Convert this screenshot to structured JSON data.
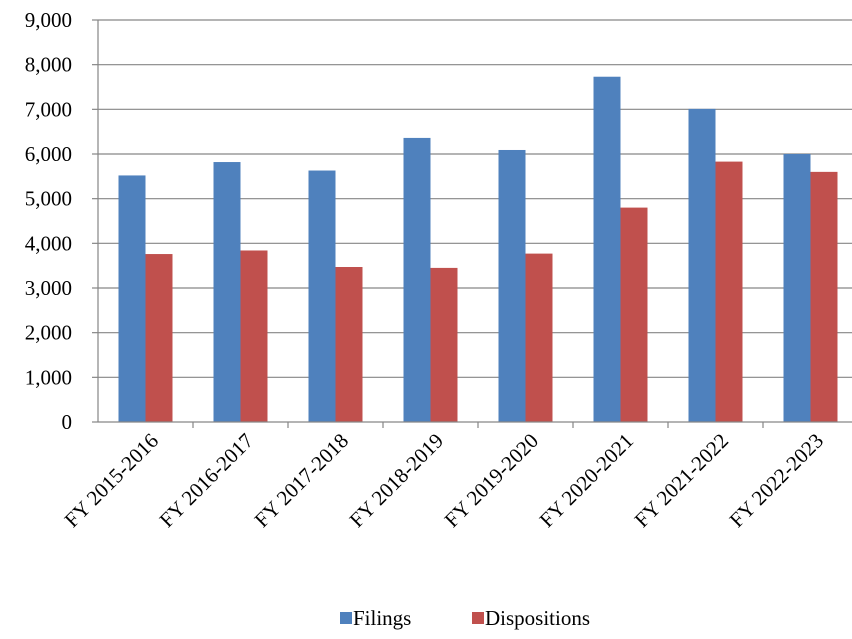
{
  "chart_data": {
    "type": "bar",
    "title": "",
    "xlabel": "",
    "ylabel": "",
    "categories": [
      "FY 2015-2016",
      "FY 2016-2017",
      "FY 2017-2018",
      "FY 2018-2019",
      "FY 2019-2020",
      "FY 2020-2021",
      "FY 2021-2022",
      "FY 2022-2023"
    ],
    "series": [
      {
        "name": "Filings",
        "color": "#4F81BD",
        "values": [
          5520,
          5820,
          5630,
          6360,
          6090,
          7730,
          7010,
          6000
        ]
      },
      {
        "name": "Dispositions",
        "color": "#C0504D",
        "values": [
          3760,
          3840,
          3470,
          3450,
          3770,
          4800,
          5830,
          5600
        ]
      }
    ],
    "ylim": [
      0,
      9000
    ],
    "yticks": [
      0,
      1000,
      2000,
      3000,
      4000,
      5000,
      6000,
      7000,
      8000,
      9000
    ],
    "ytick_labels": [
      "0",
      "1,000",
      "2,000",
      "3,000",
      "4,000",
      "5,000",
      "6,000",
      "7,000",
      "8,000",
      "9,000"
    ],
    "grid": true,
    "legend_position": "bottom"
  }
}
